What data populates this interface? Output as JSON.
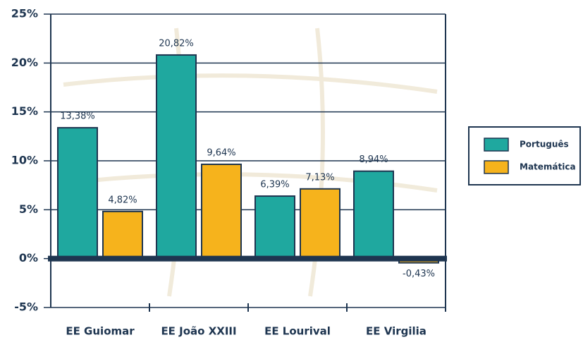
{
  "chart_data": {
    "type": "bar",
    "categories": [
      "EE Guiomar",
      "EE João XXIII",
      "EE Lourival",
      "EE Virgilia"
    ],
    "series": [
      {
        "name": "Português",
        "color": "#1fa89f",
        "values": [
          13.38,
          20.82,
          6.39,
          8.94
        ],
        "value_labels": [
          "13,38%",
          "20,82%",
          "6,39%",
          "8,94%"
        ]
      },
      {
        "name": "Matemática",
        "color": "#f6b31c",
        "values": [
          4.82,
          9.64,
          7.13,
          -0.43
        ],
        "value_labels": [
          "4,82%",
          "9,64%",
          "7,13%",
          "-0,43%"
        ]
      }
    ],
    "ylim": [
      -5,
      25
    ],
    "yticks": [
      {
        "value": -5,
        "label": "-5%"
      },
      {
        "value": 0,
        "label": "0%"
      },
      {
        "value": 5,
        "label": "5%"
      },
      {
        "value": 10,
        "label": "10%"
      },
      {
        "value": 15,
        "label": "15%"
      },
      {
        "value": 20,
        "label": "20%"
      },
      {
        "value": 25,
        "label": "25%"
      }
    ],
    "grid": true,
    "legend": "right"
  }
}
